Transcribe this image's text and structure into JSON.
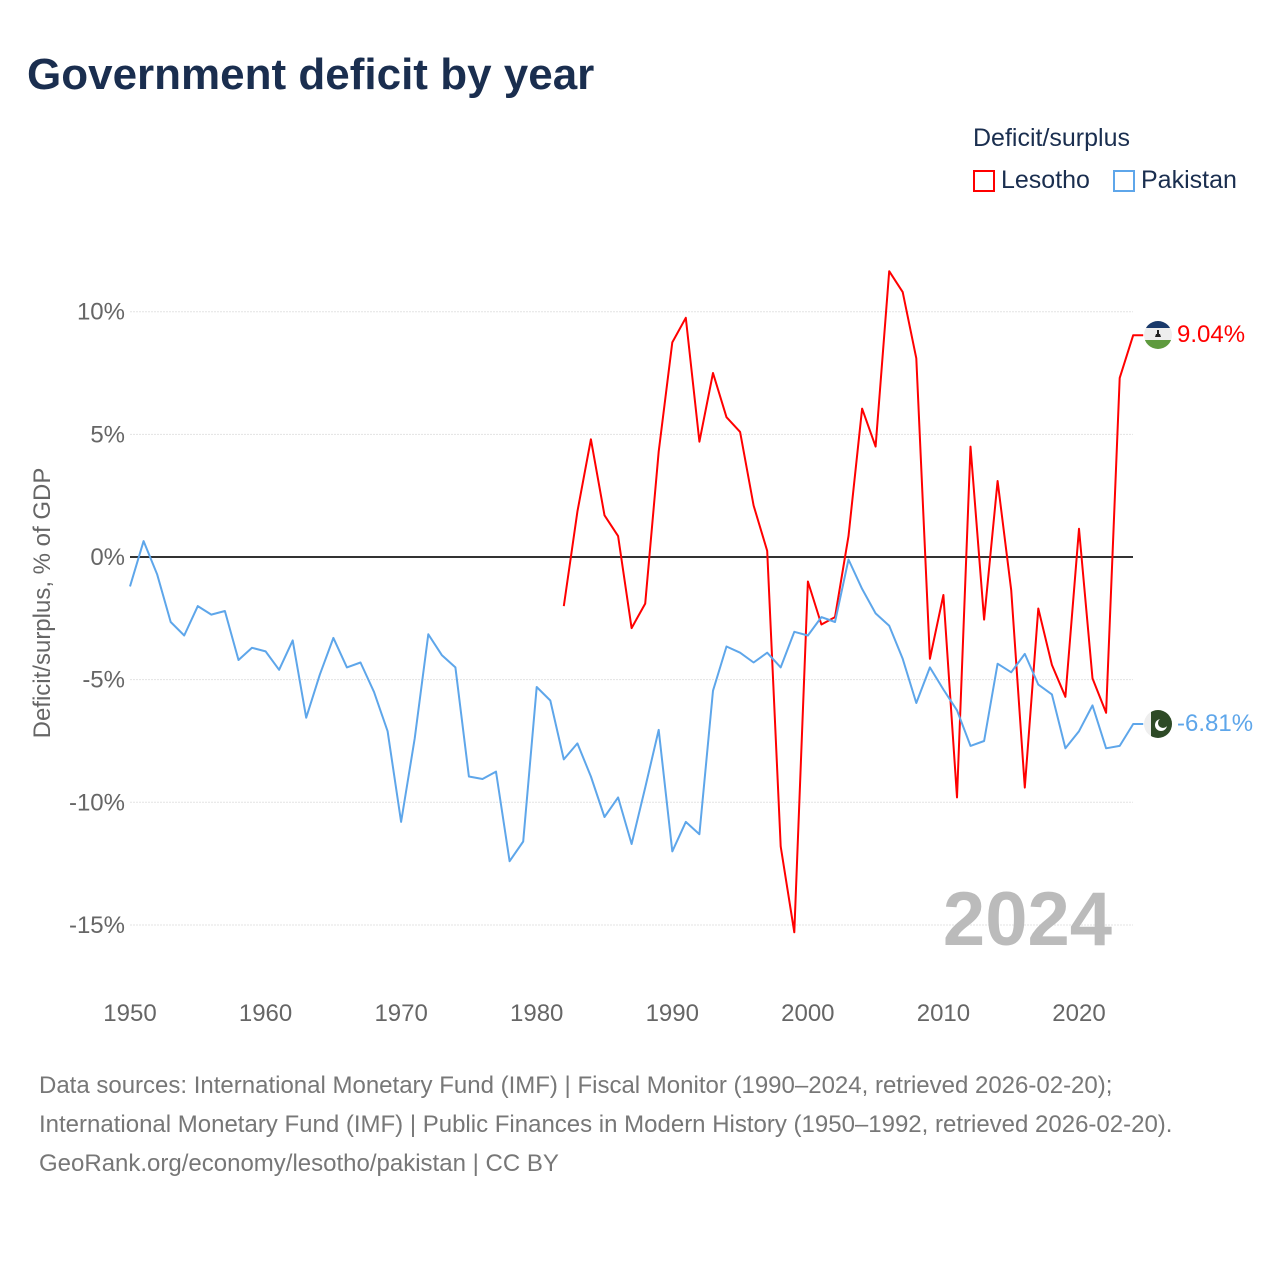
{
  "title": "Government deficit by year",
  "legend": {
    "title": "Deficit/surplus",
    "items": [
      {
        "label": "Lesotho",
        "color": "#ff0000"
      },
      {
        "label": "Pakistan",
        "color": "#5ea6ea"
      }
    ]
  },
  "year_watermark": "2024",
  "end_labels": {
    "lesotho": "9.04%",
    "pakistan": "-6.81%"
  },
  "sources": {
    "line1": "Data sources: International Monetary Fund (IMF) | Fiscal Monitor (1990–2024, retrieved 2026-02-20); International Monetary Fund (IMF) | Public Finances in Modern History (1950–1992, retrieved 2026-02-20).",
    "line2": "GeoRank.org/economy/lesotho/pakistan | CC BY"
  },
  "chart_data": {
    "type": "line",
    "title": "Government deficit by year",
    "ylabel": "Deficit/surplus, % of GDP",
    "xlabel": "",
    "xlim": [
      1950,
      2024
    ],
    "ylim": [
      -15,
      10
    ],
    "x_ticks": [
      "1950",
      "1960",
      "1970",
      "1980",
      "1990",
      "2000",
      "2010",
      "2020"
    ],
    "y_ticks": [
      {
        "v": 10,
        "label": "10%"
      },
      {
        "v": 5,
        "label": "5%"
      },
      {
        "v": 0,
        "label": "0%"
      },
      {
        "v": -5,
        "label": "-5%"
      },
      {
        "v": -10,
        "label": "-10%"
      },
      {
        "v": -15,
        "label": "-15%"
      }
    ],
    "grid": true,
    "legend_position": "top-right",
    "series": [
      {
        "name": "Lesotho",
        "color": "#ff0000",
        "start_year": 1982,
        "values": [
          -2.0,
          1.85,
          4.8,
          1.7,
          0.85,
          -2.9,
          -1.9,
          4.3,
          8.75,
          9.75,
          4.7,
          7.5,
          5.7,
          5.1,
          2.1,
          0.25,
          -11.8,
          -15.3,
          -1.0,
          -2.75,
          -2.45,
          0.85,
          6.05,
          4.5,
          11.65,
          10.8,
          8.1,
          -4.15,
          -1.55,
          -9.8,
          4.5,
          -2.55,
          3.1,
          -1.35,
          -9.4,
          -2.1,
          -4.4,
          -5.7,
          1.15,
          -4.95,
          -6.35,
          7.3,
          9.04
        ]
      },
      {
        "name": "Pakistan",
        "color": "#5ea6ea",
        "start_year": 1950,
        "values": [
          -1.2,
          0.65,
          -0.7,
          -2.65,
          -3.2,
          -2.0,
          -2.35,
          -2.2,
          -4.2,
          -3.7,
          -3.85,
          -4.6,
          -3.4,
          -6.55,
          -4.8,
          -3.3,
          -4.5,
          -4.3,
          -5.5,
          -7.1,
          -10.8,
          -7.4,
          -3.15,
          -4.0,
          -4.5,
          -8.95,
          -9.05,
          -8.75,
          -12.4,
          -11.6,
          -5.3,
          -5.85,
          -8.25,
          -7.6,
          -8.95,
          -10.6,
          -9.8,
          -11.7,
          -9.4,
          -7.05,
          -12.0,
          -10.8,
          -11.3,
          -5.45,
          -3.65,
          -3.9,
          -4.3,
          -3.9,
          -4.5,
          -3.05,
          -3.2,
          -2.45,
          -2.65,
          -0.1,
          -1.3,
          -2.3,
          -2.8,
          -4.15,
          -5.95,
          -4.5,
          -5.4,
          -6.25,
          -7.7,
          -7.5,
          -4.35,
          -4.7,
          -3.95,
          -5.2,
          -5.6,
          -7.8,
          -7.1,
          -6.05,
          -7.8,
          -7.7,
          -6.81
        ]
      }
    ]
  }
}
